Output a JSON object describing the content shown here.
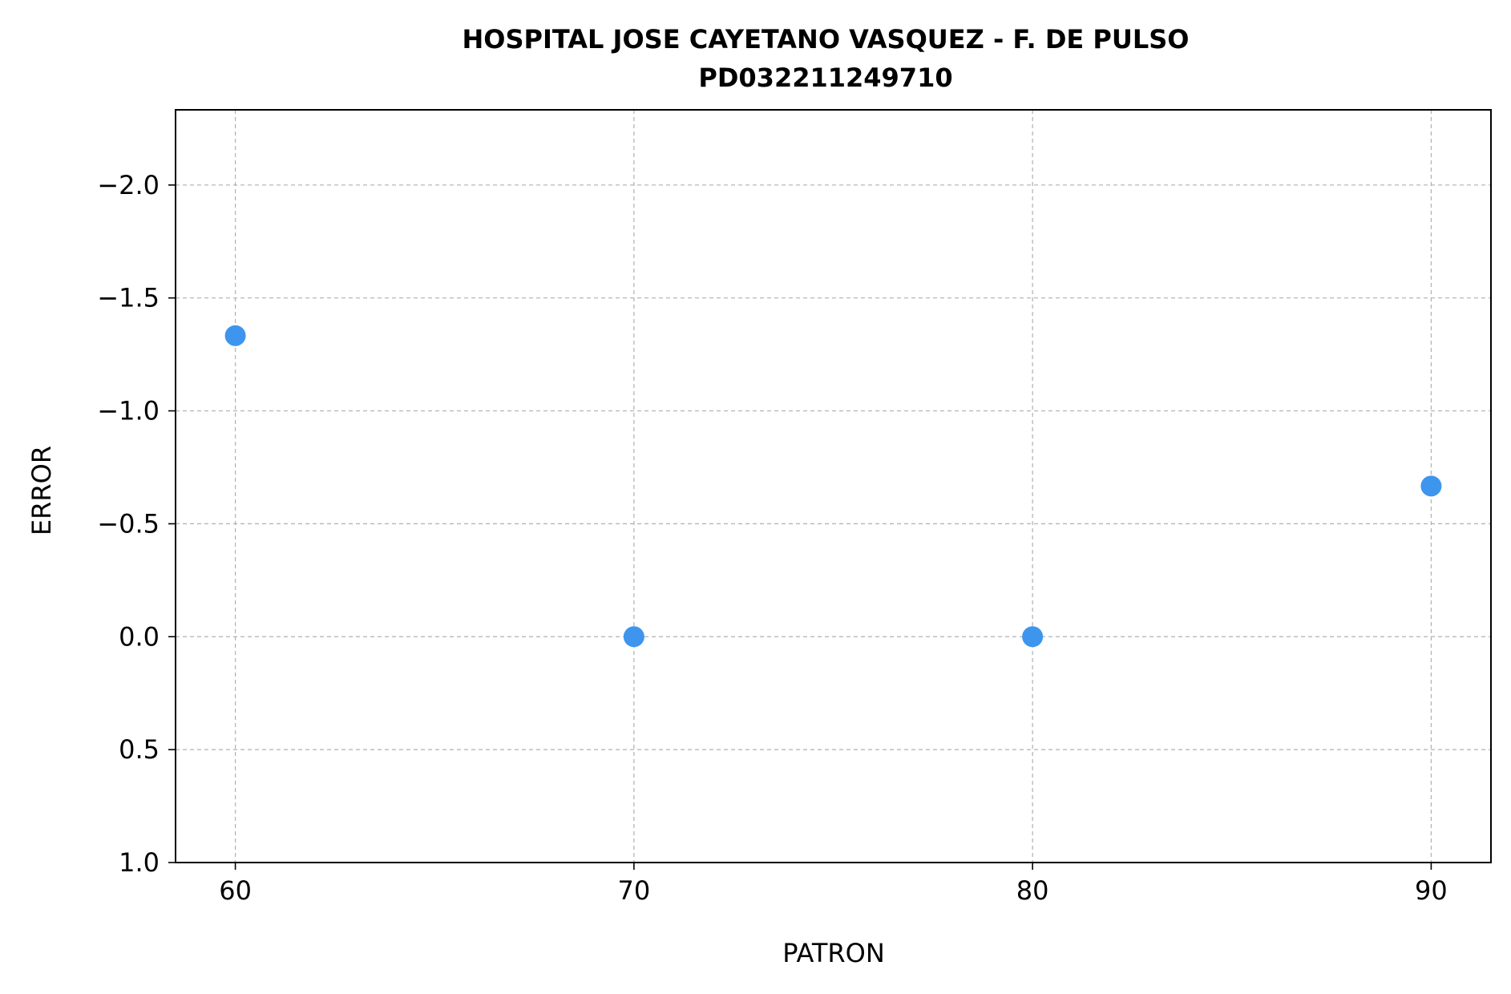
{
  "chart_data": {
    "type": "scatter",
    "title": "HOSPITAL JOSE CAYETANO VASQUEZ - F. DE PULSO",
    "subtitle": "PD032211249710",
    "xlabel": "PATRON",
    "ylabel": "ERROR",
    "xlim": [
      58.5,
      91.5
    ],
    "ylim": [
      1.0,
      -2.333
    ],
    "y_inverted": true,
    "x_ticks": [
      60,
      70,
      80,
      90
    ],
    "x_tick_labels": [
      "60",
      "70",
      "80",
      "90"
    ],
    "y_ticks": [
      -2.0,
      -1.5,
      -1.0,
      -0.5,
      0.0,
      0.5,
      1.0
    ],
    "y_tick_labels": [
      "−2.0",
      "−1.5",
      "−1.0",
      "−0.5",
      "0.0",
      "0.5",
      "1.0"
    ],
    "grid": true,
    "marker_color": "#3d95ee",
    "series": [
      {
        "x": [
          60,
          70,
          80,
          90
        ],
        "y": [
          -1.333,
          0.0,
          0.0,
          -0.667
        ]
      }
    ]
  }
}
